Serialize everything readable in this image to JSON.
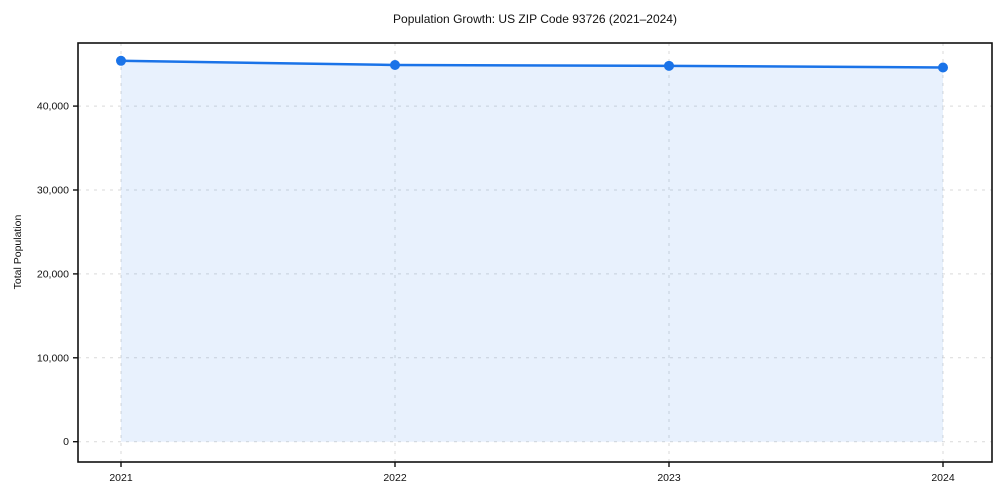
{
  "figure": {
    "background_color": "#ffffff"
  },
  "chart_data": {
    "type": "line",
    "title": "Population Growth: US ZIP Code 93726 (2021–2024)",
    "xlabel": "",
    "ylabel": "Total Population",
    "x": [
      2021,
      2022,
      2023,
      2024
    ],
    "x_tick_labels": [
      "2021",
      "2022",
      "2023",
      "2024"
    ],
    "series": [
      {
        "name": "Total Population",
        "values": [
          45400,
          44900,
          44800,
          44600
        ]
      }
    ],
    "yticks": [
      0,
      10000,
      20000,
      30000,
      40000
    ],
    "ytick_labels": [
      "0",
      "10,000",
      "20,000",
      "30,000",
      "40,000"
    ],
    "ylim": [
      -2420,
      47520
    ],
    "grid": true,
    "grid_style": "dashed",
    "legend": "none",
    "fill_to_zero": true,
    "marker": "circle",
    "line_color": "#1a73e8",
    "fill_color": "rgba(26,115,232,0.10)",
    "grid_color": "#d9d9d9",
    "spine_color": "#111111",
    "text_color": "#111111"
  }
}
